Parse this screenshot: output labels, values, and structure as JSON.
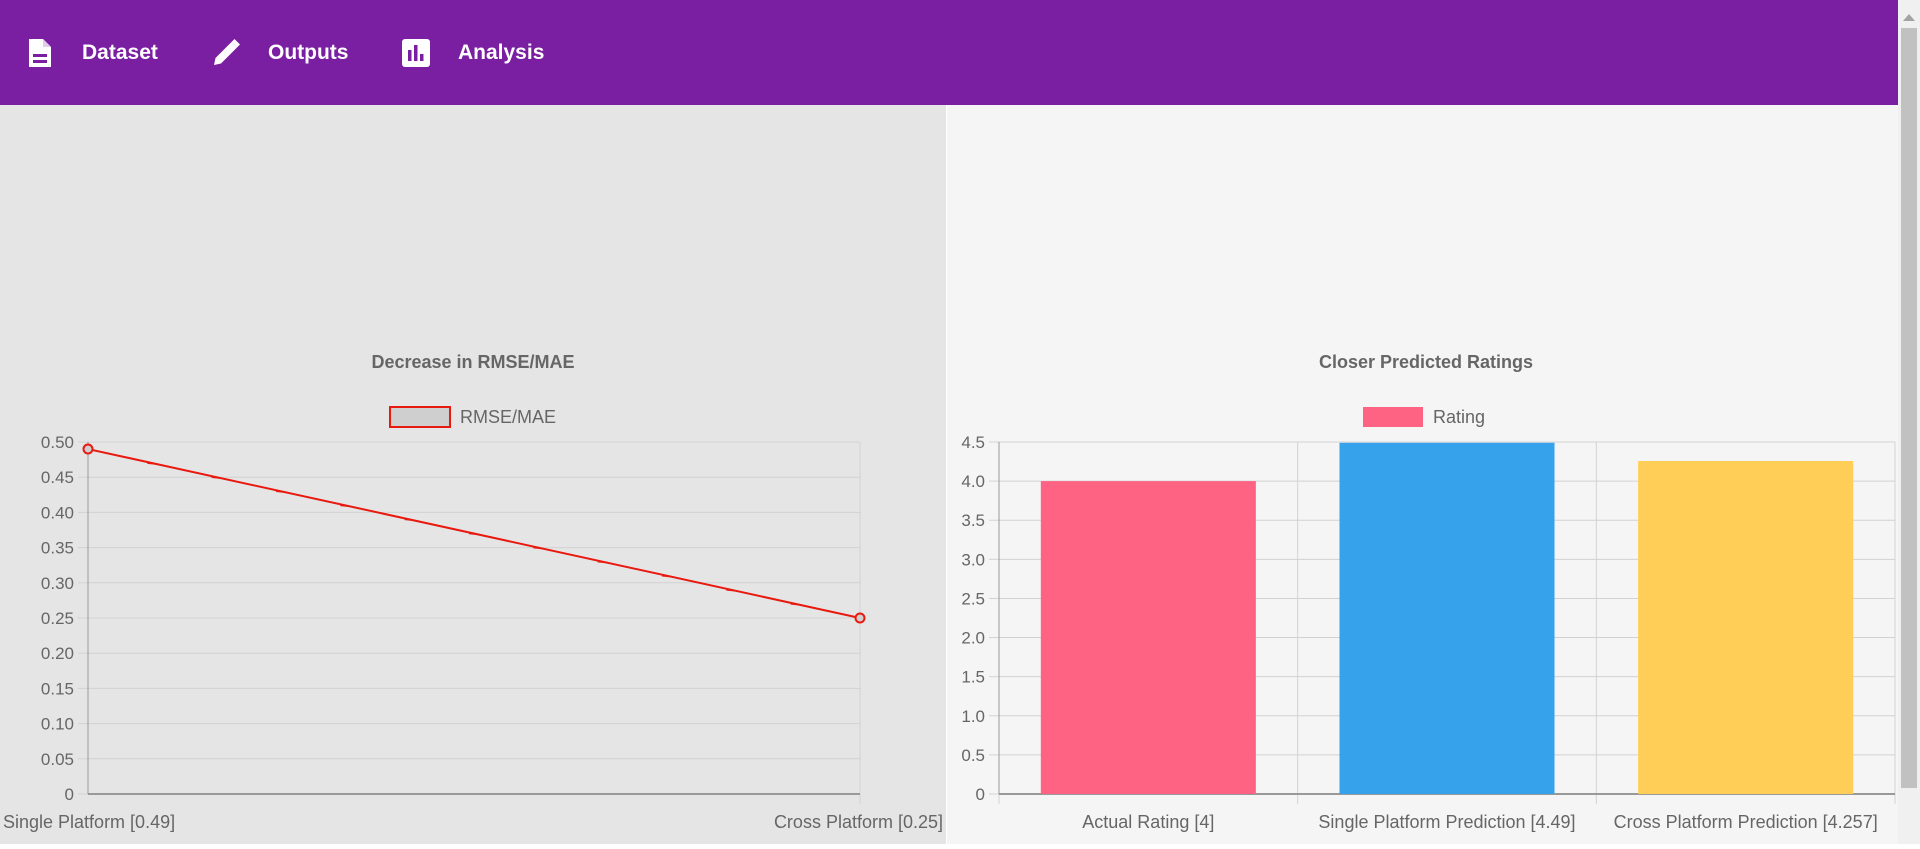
{
  "nav": {
    "items": [
      {
        "label": "Dataset",
        "icon": "document-icon"
      },
      {
        "label": "Outputs",
        "icon": "pencil-icon"
      },
      {
        "label": "Analysis",
        "icon": "bar-chart-icon"
      }
    ]
  },
  "colors": {
    "header": "#7b1fa2",
    "line": "#e8190f",
    "grid": "#d2d2d2"
  },
  "chart_data": [
    {
      "type": "line",
      "title": "Decrease in RMSE/MAE",
      "series": [
        {
          "name": "RMSE/MAE",
          "values": [
            0.49,
            0.25
          ],
          "color": "#e8190f",
          "fill": "#cfcfcf"
        }
      ],
      "categories": [
        "Single Platform [0.49]",
        "Cross Platform [0.25]"
      ],
      "ylim": [
        0,
        0.5
      ],
      "yticks": [
        "0.50",
        "0.45",
        "0.40",
        "0.35",
        "0.30",
        "0.25",
        "0.20",
        "0.15",
        "0.10",
        "0.05",
        "0"
      ],
      "grid": true,
      "legend": "top"
    },
    {
      "type": "bar",
      "title": "Closer Predicted Ratings",
      "series": [
        {
          "name": "Rating",
          "values": [
            4,
            4.49,
            4.257
          ]
        }
      ],
      "categories": [
        "Actual Rating [4]",
        "Single Platform Prediction [4.49]",
        "Cross Platform Prediction [4.257]"
      ],
      "colors": [
        "#ff6384",
        "#36a2eb",
        "#ffce56"
      ],
      "legend_color": "#ff6384",
      "ylim": [
        0,
        4.5
      ],
      "yticks": [
        "4.5",
        "4.0",
        "3.5",
        "3.0",
        "2.5",
        "2.0",
        "1.5",
        "1.0",
        "0.5",
        "0"
      ],
      "grid": true,
      "legend": "top"
    }
  ]
}
